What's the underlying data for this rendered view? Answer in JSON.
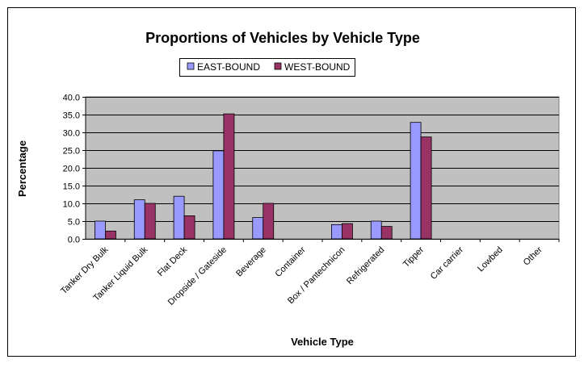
{
  "chart_data": {
    "type": "bar",
    "title": "Proportions of Vehicles by Vehicle Type",
    "xlabel": "Vehicle Type",
    "ylabel": "Percentage",
    "ylim": [
      0,
      40
    ],
    "ytick_step": 5,
    "ytick_labels": [
      "0.0",
      "5.0",
      "10.0",
      "15.0",
      "20.0",
      "25.0",
      "30.0",
      "35.0",
      "40.0"
    ],
    "grid": true,
    "legend_position": "top-center",
    "categories": [
      "Tanker Dry Bulk",
      "Tanker Liquid Bulk",
      "Flat Deck",
      "Dropside / Gateside",
      "Beverage",
      "Container",
      "Box / Pantechnicon",
      "Refrigerated",
      "Tipper",
      "Car carrier",
      "Lowbed",
      "Other"
    ],
    "series": [
      {
        "name": "EAST-BOUND",
        "color": "#9999ff",
        "values": [
          5.0,
          11.0,
          12.0,
          24.8,
          6.0,
          0,
          4.0,
          5.0,
          32.8,
          0,
          0,
          0
        ]
      },
      {
        "name": "WEST-BOUND",
        "color": "#993366",
        "values": [
          2.2,
          10.0,
          6.5,
          35.2,
          10.0,
          0,
          4.3,
          3.5,
          28.7,
          0,
          0,
          0
        ]
      }
    ]
  }
}
